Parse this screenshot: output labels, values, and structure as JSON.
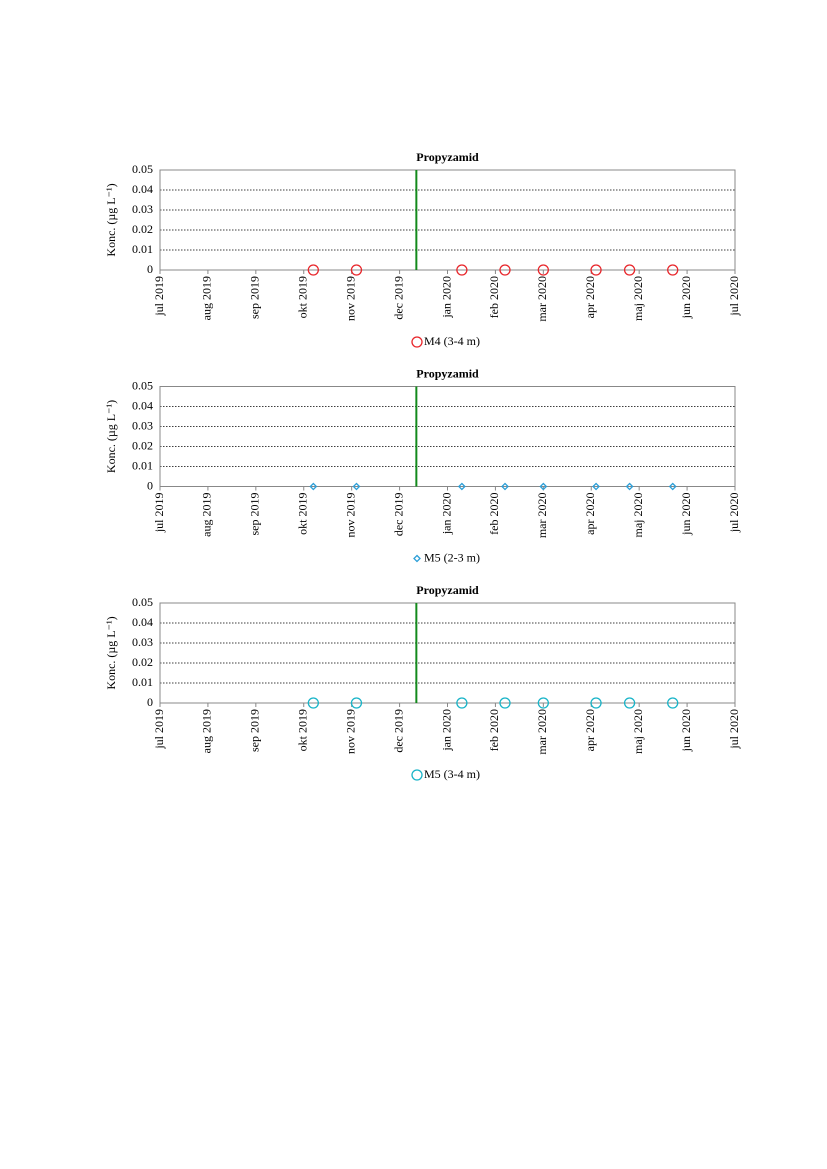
{
  "chart_data": [
    {
      "type": "scatter",
      "title": "Propyzamid",
      "ylabel": "Konc. (µg L⁻¹)",
      "x": [
        3.2,
        4.1,
        6.3,
        7.2,
        8.0,
        9.1,
        9.8,
        10.7
      ],
      "series": [
        {
          "name": "M4 (3-4 m)",
          "color": "#e8262b",
          "marker": "circle",
          "values": [
            0,
            0,
            0,
            0,
            0,
            0,
            0,
            0
          ]
        }
      ],
      "xlim": [
        0,
        12
      ],
      "xticks": [
        {
          "value": 0,
          "label": "jul 2019"
        },
        {
          "value": 1,
          "label": "aug 2019"
        },
        {
          "value": 2,
          "label": "sep 2019"
        },
        {
          "value": 3,
          "label": "okt 2019"
        },
        {
          "value": 4,
          "label": "nov 2019"
        },
        {
          "value": 5,
          "label": "dec 2019"
        },
        {
          "value": 6,
          "label": "jan 2020"
        },
        {
          "value": 7,
          "label": "feb 2020"
        },
        {
          "value": 8,
          "label": "mar 2020"
        },
        {
          "value": 9,
          "label": "apr 2020"
        },
        {
          "value": 10,
          "label": "maj 2020"
        },
        {
          "value": 11,
          "label": "jun 2020"
        },
        {
          "value": 12,
          "label": "jul 2020"
        }
      ],
      "ylim": [
        0,
        0.05
      ],
      "yticks": [
        0,
        0.01,
        0.02,
        0.03,
        0.04,
        0.05
      ],
      "grid": true,
      "vline": 5.35,
      "vline_color": "#138a1c",
      "legend": "bottom"
    },
    {
      "type": "scatter",
      "title": "Propyzamid",
      "ylabel": "Konc. (µg L⁻¹)",
      "x": [
        3.2,
        4.1,
        6.3,
        7.2,
        8.0,
        9.1,
        9.8,
        10.7
      ],
      "series": [
        {
          "name": "M5 (2-3 m)",
          "color": "#2c9fd8",
          "marker": "diamond",
          "values": [
            0,
            0,
            0,
            0,
            0,
            0,
            0,
            0
          ]
        }
      ],
      "xlim": [
        0,
        12
      ],
      "xticks": [
        {
          "value": 0,
          "label": "jul 2019"
        },
        {
          "value": 1,
          "label": "aug 2019"
        },
        {
          "value": 2,
          "label": "sep 2019"
        },
        {
          "value": 3,
          "label": "okt 2019"
        },
        {
          "value": 4,
          "label": "nov 2019"
        },
        {
          "value": 5,
          "label": "dec 2019"
        },
        {
          "value": 6,
          "label": "jan 2020"
        },
        {
          "value": 7,
          "label": "feb 2020"
        },
        {
          "value": 8,
          "label": "mar 2020"
        },
        {
          "value": 9,
          "label": "apr 2020"
        },
        {
          "value": 10,
          "label": "maj 2020"
        },
        {
          "value": 11,
          "label": "jun 2020"
        },
        {
          "value": 12,
          "label": "jul 2020"
        }
      ],
      "ylim": [
        0,
        0.05
      ],
      "yticks": [
        0,
        0.01,
        0.02,
        0.03,
        0.04,
        0.05
      ],
      "grid": true,
      "vline": 5.35,
      "vline_color": "#138a1c",
      "legend": "bottom"
    },
    {
      "type": "scatter",
      "title": "Propyzamid",
      "ylabel": "Konc. (µg L⁻¹)",
      "x": [
        3.2,
        4.1,
        6.3,
        7.2,
        8.0,
        9.1,
        9.8,
        10.7
      ],
      "series": [
        {
          "name": "M5 (3-4 m)",
          "color": "#18b4c8",
          "marker": "circle",
          "values": [
            0,
            0,
            0,
            0,
            0,
            0,
            0,
            0
          ]
        }
      ],
      "xlim": [
        0,
        12
      ],
      "xticks": [
        {
          "value": 0,
          "label": "jul 2019"
        },
        {
          "value": 1,
          "label": "aug 2019"
        },
        {
          "value": 2,
          "label": "sep 2019"
        },
        {
          "value": 3,
          "label": "okt 2019"
        },
        {
          "value": 4,
          "label": "nov 2019"
        },
        {
          "value": 5,
          "label": "dec 2019"
        },
        {
          "value": 6,
          "label": "jan 2020"
        },
        {
          "value": 7,
          "label": "feb 2020"
        },
        {
          "value": 8,
          "label": "mar 2020"
        },
        {
          "value": 9,
          "label": "apr 2020"
        },
        {
          "value": 10,
          "label": "maj 2020"
        },
        {
          "value": 11,
          "label": "jun 2020"
        },
        {
          "value": 12,
          "label": "jul 2020"
        }
      ],
      "ylim": [
        0,
        0.05
      ],
      "yticks": [
        0,
        0.01,
        0.02,
        0.03,
        0.04,
        0.05
      ],
      "grid": true,
      "vline": 5.35,
      "vline_color": "#138a1c",
      "legend": "bottom"
    }
  ]
}
